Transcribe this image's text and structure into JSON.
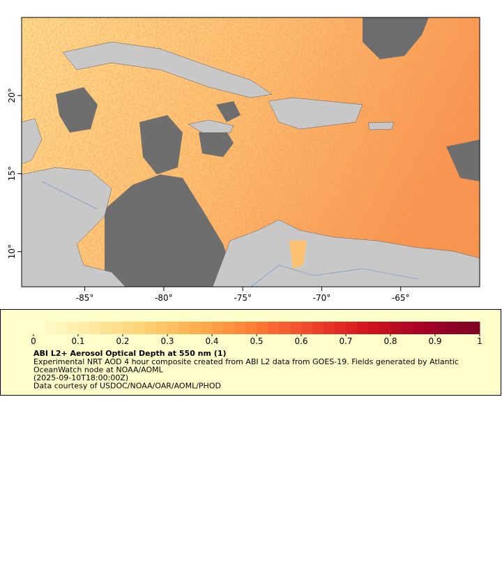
{
  "map": {
    "xlim": [
      -89,
      -60
    ],
    "ylim": [
      7.75,
      25
    ],
    "xticks": [
      {
        "value": -85,
        "label": "-85°"
      },
      {
        "value": -80,
        "label": "-80°"
      },
      {
        "value": -75,
        "label": "-75°"
      },
      {
        "value": -70,
        "label": "-70°"
      },
      {
        "value": -65,
        "label": "-65°"
      }
    ],
    "yticks": [
      {
        "value": 10,
        "label": "10°"
      },
      {
        "value": 15,
        "label": "15°"
      },
      {
        "value": 20,
        "label": "20°"
      }
    ]
  },
  "colorbar": {
    "lim": [
      0,
      1
    ],
    "ticks": [
      0,
      0.1,
      0.2,
      0.3,
      0.4,
      0.5,
      0.6,
      0.7,
      0.8,
      0.9,
      1
    ],
    "steps": 40,
    "colors": [
      "#ffffcc",
      "#fee9a0",
      "#fed070",
      "#feab4a",
      "#fc7b36",
      "#f0452a",
      "#d4151e",
      "#a80326",
      "#800026"
    ]
  },
  "legend": {
    "title": "ABI L2+ Aerosol Optical Depth at 550 nm (1)",
    "description": [
      "Experimental NRT AOD 4 hour composite created from ABI L2 data from GOES-19. Fields generated by Atlantic",
      "OceanWatch node at NOAA/AOML",
      "(2025-09-10T18:00:00Z)",
      "Data courtesy of USDOC/NOAA/OAR/AOML/PHOD"
    ]
  }
}
